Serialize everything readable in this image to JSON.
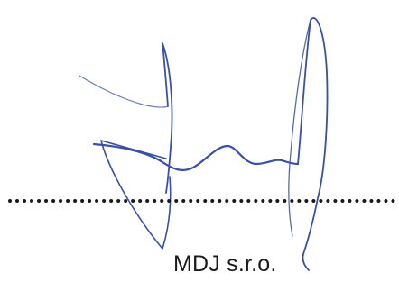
{
  "document": {
    "signature": {
      "ink_color": "#3a4fa8"
    },
    "signature_line": {
      "style": "dotted"
    },
    "company_name": "MDJ s.r.o."
  }
}
